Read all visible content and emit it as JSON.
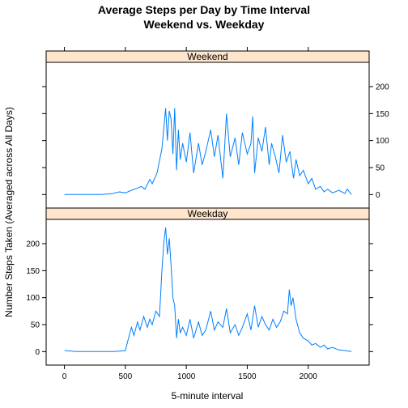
{
  "chart_data": {
    "type": "line",
    "title": "Average Steps per Day by Time Interval",
    "subtitle": "Weekend vs. Weekday",
    "xlabel": "5-minute interval",
    "ylabel": "Number Steps Taken (Averaged across All Days)",
    "xlim": [
      -150,
      2500
    ],
    "ylim": [
      -25,
      245
    ],
    "x_ticks": [
      0,
      500,
      1000,
      1500,
      2000
    ],
    "y_ticks": [
      0,
      50,
      100,
      150,
      200
    ],
    "x_tick_labels": [
      "0",
      "500",
      "1000",
      "1500",
      "2000"
    ],
    "y_tick_labels": [
      "0",
      "50",
      "100",
      "150",
      "200"
    ],
    "panels": [
      {
        "name": "Weekend",
        "y_axis_side": "right",
        "x": [
          0,
          100,
          200,
          300,
          400,
          450,
          500,
          550,
          600,
          630,
          660,
          700,
          720,
          760,
          800,
          830,
          845,
          860,
          875,
          890,
          905,
          920,
          935,
          950,
          970,
          1000,
          1030,
          1060,
          1100,
          1130,
          1160,
          1200,
          1230,
          1260,
          1300,
          1330,
          1360,
          1400,
          1430,
          1460,
          1500,
          1530,
          1545,
          1560,
          1590,
          1620,
          1650,
          1680,
          1700,
          1730,
          1760,
          1790,
          1820,
          1850,
          1880,
          1900,
          1930,
          1960,
          2000,
          2030,
          2060,
          2100,
          2130,
          2160,
          2200,
          2250,
          2300,
          2320,
          2355
        ],
        "y": [
          0,
          0,
          0,
          0,
          2,
          5,
          3,
          8,
          12,
          15,
          10,
          28,
          20,
          40,
          85,
          160,
          100,
          155,
          140,
          75,
          160,
          45,
          120,
          65,
          95,
          60,
          115,
          40,
          95,
          55,
          80,
          120,
          70,
          110,
          30,
          150,
          70,
          105,
          55,
          115,
          75,
          95,
          145,
          40,
          105,
          80,
          125,
          55,
          95,
          70,
          40,
          110,
          60,
          80,
          30,
          65,
          35,
          45,
          20,
          30,
          10,
          15,
          5,
          10,
          3,
          8,
          2,
          10,
          0
        ]
      },
      {
        "name": "Weekday",
        "y_axis_side": "left",
        "x": [
          0,
          100,
          200,
          300,
          400,
          450,
          500,
          520,
          550,
          570,
          600,
          620,
          650,
          680,
          700,
          720,
          750,
          780,
          800,
          815,
          830,
          845,
          860,
          875,
          890,
          905,
          920,
          935,
          950,
          970,
          1000,
          1030,
          1060,
          1100,
          1130,
          1160,
          1200,
          1230,
          1260,
          1300,
          1330,
          1360,
          1400,
          1430,
          1460,
          1500,
          1530,
          1560,
          1590,
          1620,
          1650,
          1680,
          1710,
          1740,
          1770,
          1800,
          1830,
          1845,
          1860,
          1875,
          1900,
          1930,
          1960,
          2000,
          2030,
          2060,
          2100,
          2130,
          2160,
          2200,
          2250,
          2300,
          2355
        ],
        "y": [
          2,
          0,
          0,
          0,
          0,
          1,
          2,
          20,
          45,
          30,
          55,
          40,
          65,
          45,
          60,
          50,
          75,
          65,
          150,
          200,
          230,
          180,
          210,
          160,
          100,
          85,
          25,
          60,
          35,
          45,
          30,
          60,
          25,
          55,
          30,
          40,
          75,
          40,
          55,
          45,
          80,
          35,
          50,
          30,
          45,
          70,
          40,
          85,
          45,
          65,
          50,
          40,
          60,
          45,
          55,
          75,
          70,
          115,
          85,
          100,
          60,
          35,
          25,
          20,
          12,
          15,
          8,
          12,
          5,
          8,
          3,
          2,
          0
        ]
      }
    ]
  }
}
